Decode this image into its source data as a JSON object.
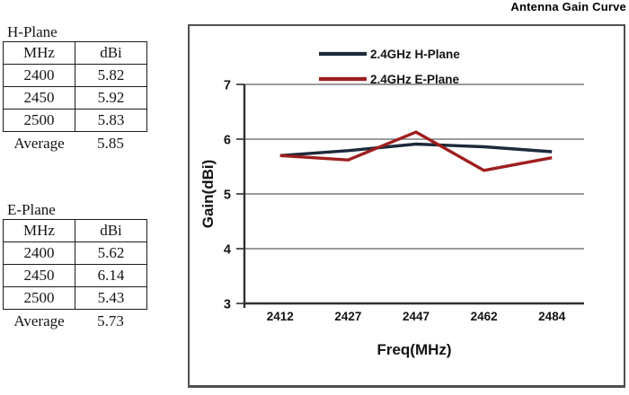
{
  "page_title": "Antenna Gain Curve",
  "tables": [
    {
      "title": "H-Plane",
      "columns": [
        "MHz",
        "dBi"
      ],
      "rows": [
        [
          "2400",
          "5.82"
        ],
        [
          "2450",
          "5.92"
        ],
        [
          "2500",
          "5.83"
        ]
      ],
      "footer": {
        "label": "Average",
        "value": "5.85"
      }
    },
    {
      "title": "E-Plane",
      "columns": [
        "MHz",
        "dBi"
      ],
      "rows": [
        [
          "2400",
          "5.62"
        ],
        [
          "2450",
          "6.14"
        ],
        [
          "2500",
          "5.43"
        ]
      ],
      "footer": {
        "label": "Average",
        "value": "5.73"
      }
    }
  ],
  "chart_data": {
    "type": "line",
    "categories": [
      "2412",
      "2427",
      "2447",
      "2462",
      "2484"
    ],
    "series": [
      {
        "name": "2.4GHz H-Plane",
        "color": "#1c2a3a",
        "values": [
          5.7,
          5.79,
          5.91,
          5.86,
          5.77
        ]
      },
      {
        "name": "2.4GHz E-Plane",
        "color": "#9e1e1e",
        "values": [
          5.7,
          5.62,
          6.13,
          5.43,
          5.66
        ]
      }
    ],
    "xlabel": "Freq(MHz)",
    "ylabel": "Gain(dBi)",
    "ylim": [
      3,
      7
    ],
    "yticks": [
      3,
      4,
      5,
      6,
      7
    ],
    "grid": true,
    "legend_position": "top-center",
    "grid_color": "#7a7a7a",
    "axis_color": "#2f2f2f"
  }
}
